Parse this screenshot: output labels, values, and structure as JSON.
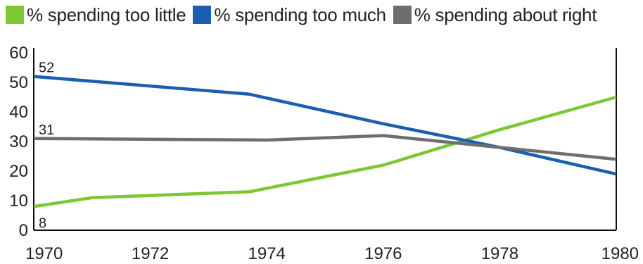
{
  "chart_data": {
    "type": "line",
    "x": [
      1970,
      1971,
      1973.7,
      1976,
      1978,
      1980
    ],
    "series": [
      {
        "name": "% spending too little",
        "color": "#7dc832",
        "points": [
          [
            1970,
            8
          ],
          [
            1971,
            11
          ],
          [
            1973.7,
            13
          ],
          [
            1976,
            22
          ],
          [
            1978,
            34
          ],
          [
            1980,
            45
          ]
        ]
      },
      {
        "name": "% spending too much",
        "color": "#1a5fb0",
        "points": [
          [
            1970,
            52
          ],
          [
            1973.7,
            46
          ],
          [
            1976,
            36
          ],
          [
            1978,
            28
          ],
          [
            1980,
            19
          ]
        ]
      },
      {
        "name": "% spending about right",
        "color": "#6e6e6e",
        "points": [
          [
            1970,
            31
          ],
          [
            1974,
            30.5
          ],
          [
            1976,
            32
          ],
          [
            1978,
            28
          ],
          [
            1980,
            24
          ]
        ]
      }
    ],
    "x_ticks": [
      "1970",
      "1972",
      "1974",
      "1976",
      "1978",
      "1980"
    ],
    "y_ticks": [
      "0",
      "10",
      "20",
      "30",
      "40",
      "50",
      "60"
    ],
    "xlim": [
      1970,
      1980
    ],
    "ylim": [
      0,
      60
    ],
    "annotations": [
      {
        "text": "52",
        "x": 1970,
        "y": 52
      },
      {
        "text": "31",
        "x": 1970,
        "y": 31
      },
      {
        "text": "8",
        "x": 1970,
        "y": 8
      }
    ],
    "legend_position": "top",
    "grid": false
  }
}
